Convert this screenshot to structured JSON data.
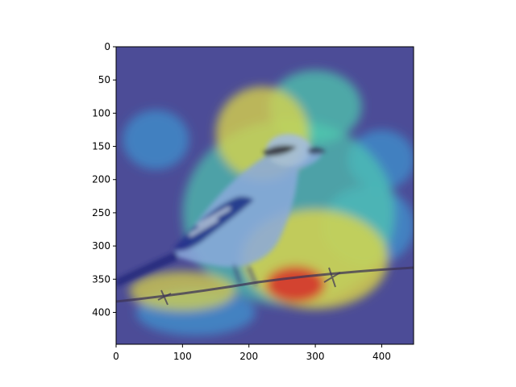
{
  "chart_data": {
    "type": "heatmap",
    "title": "",
    "xlabel": "",
    "ylabel": "",
    "xlim": [
      0,
      448
    ],
    "ylim": [
      448,
      0
    ],
    "x_ticks": [
      0,
      100,
      200,
      300,
      400
    ],
    "x_tick_labels": [
      "0",
      "100",
      "200",
      "300",
      "400"
    ],
    "y_ticks": [
      0,
      50,
      100,
      150,
      200,
      250,
      300,
      350,
      400
    ],
    "y_tick_labels": [
      "0",
      "50",
      "100",
      "150",
      "200",
      "250",
      "300",
      "350",
      "400"
    ],
    "colormap": "jet",
    "grid": false,
    "legend": "none",
    "background_image": "bird-on-barbed-wire",
    "heat_blobs": [
      {
        "cx": 270,
        "cy": 358,
        "rx": 45,
        "ry": 28,
        "level": 1.0
      },
      {
        "cx": 300,
        "cy": 320,
        "rx": 110,
        "ry": 75,
        "level": 0.78
      },
      {
        "cx": 220,
        "cy": 130,
        "rx": 70,
        "ry": 70,
        "level": 0.7
      },
      {
        "cx": 300,
        "cy": 90,
        "rx": 70,
        "ry": 55,
        "level": 0.55
      },
      {
        "cx": 260,
        "cy": 250,
        "rx": 160,
        "ry": 140,
        "level": 0.45
      },
      {
        "cx": 100,
        "cy": 368,
        "rx": 80,
        "ry": 30,
        "level": 0.6
      },
      {
        "cx": 380,
        "cy": 270,
        "rx": 70,
        "ry": 60,
        "level": 0.4
      },
      {
        "cx": 400,
        "cy": 170,
        "rx": 50,
        "ry": 45,
        "level": 0.35
      },
      {
        "cx": 60,
        "cy": 140,
        "rx": 50,
        "ry": 45,
        "level": 0.35
      },
      {
        "cx": 120,
        "cy": 400,
        "rx": 90,
        "ry": 35,
        "level": 0.4
      }
    ],
    "colors": {
      "low": "#1a1aa8",
      "mid_low": "#3aa6e0",
      "mid": "#4dd8b0",
      "mid_high": "#e8e040",
      "high": "#e03020"
    }
  }
}
